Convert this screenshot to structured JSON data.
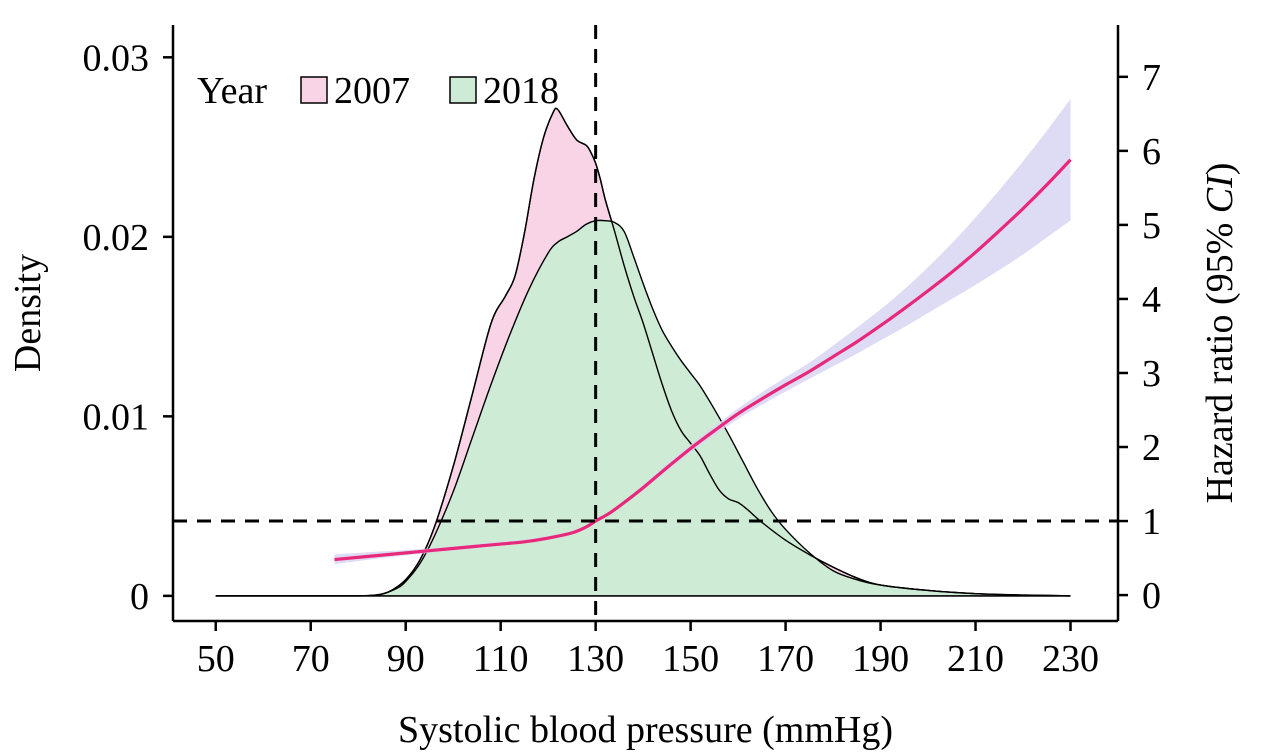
{
  "chart_data": {
    "type": "area",
    "xlabel": "Systolic blood pressure (mmHg)",
    "ylabel": "Density",
    "y2label_main": "Hazard ratio (95% ",
    "y2label_italic": "CI",
    "y2label_end": ")",
    "xlim": [
      41,
      240
    ],
    "ylim": [
      -0.0014,
      0.0318
    ],
    "y2lim": [
      -0.35,
      7.7
    ],
    "x_ticks": [
      50,
      70,
      90,
      110,
      130,
      150,
      170,
      190,
      210,
      230
    ],
    "y_ticks": [
      {
        "value": 0,
        "label": "0"
      },
      {
        "value": 0.01,
        "label": "0.01"
      },
      {
        "value": 0.02,
        "label": "0.02"
      },
      {
        "value": 0.03,
        "label": "0.03"
      }
    ],
    "y2_ticks": [
      0,
      1,
      2,
      3,
      4,
      5,
      6,
      7
    ],
    "legend": {
      "title": "Year",
      "position": "top-left"
    },
    "reference_lines": {
      "x": 130,
      "y2": 1
    },
    "colors": {
      "fill_2007": "#f9d3e6",
      "fill_2018": "#cdebd5",
      "hr_line": "#e8287a",
      "ci_band": "#d8d6f2"
    },
    "series": [
      {
        "name": "2007",
        "type": "density",
        "x": [
          50,
          60,
          70,
          75,
          80,
          83,
          85,
          87,
          90,
          93,
          96,
          100,
          104,
          108,
          111,
          113,
          115,
          117,
          119,
          121,
          122,
          124,
          126,
          128,
          129,
          130,
          131,
          132,
          134,
          136,
          138,
          140,
          142,
          144,
          146,
          148,
          150,
          152,
          154,
          156,
          158,
          160,
          162,
          165,
          170,
          175,
          180,
          185,
          190,
          200,
          210,
          220,
          230
        ],
        "values": [
          0,
          0,
          0,
          0,
          0,
          3e-05,
          0.0001,
          0.0003,
          0.0009,
          0.002,
          0.0038,
          0.0072,
          0.0112,
          0.0152,
          0.0167,
          0.0178,
          0.0202,
          0.0232,
          0.0255,
          0.0269,
          0.0271,
          0.0262,
          0.0254,
          0.0251,
          0.0247,
          0.0241,
          0.0232,
          0.0221,
          0.0203,
          0.0184,
          0.0167,
          0.0152,
          0.0135,
          0.0118,
          0.0103,
          0.0092,
          0.0085,
          0.0078,
          0.0068,
          0.0059,
          0.0054,
          0.0052,
          0.0048,
          0.0041,
          0.0031,
          0.0023,
          0.0016,
          0.001,
          0.0006,
          0.0003,
          0.00012,
          4e-05,
          0
        ]
      },
      {
        "name": "2018",
        "type": "density",
        "x": [
          50,
          60,
          70,
          75,
          80,
          83,
          85,
          88,
          90,
          93,
          96,
          100,
          104,
          108,
          112,
          116,
          120,
          122,
          124,
          126,
          128,
          130,
          132,
          134,
          136,
          138,
          140,
          142,
          144,
          146,
          148,
          150,
          152,
          155,
          158,
          161,
          164,
          167,
          170,
          175,
          180,
          185,
          190,
          200,
          210,
          220,
          230
        ],
        "values": [
          0,
          0,
          0,
          0,
          0,
          3e-05,
          0.0001,
          0.0004,
          0.0008,
          0.0018,
          0.0033,
          0.0058,
          0.0088,
          0.0118,
          0.0146,
          0.0171,
          0.0191,
          0.0197,
          0.02,
          0.0203,
          0.0207,
          0.0209,
          0.0209,
          0.0208,
          0.0203,
          0.0189,
          0.0174,
          0.016,
          0.0148,
          0.0139,
          0.0131,
          0.0124,
          0.0117,
          0.0104,
          0.009,
          0.0075,
          0.006,
          0.0047,
          0.0037,
          0.0024,
          0.0014,
          0.0009,
          0.0006,
          0.0003,
          0.00012,
          5e-05,
          0
        ]
      },
      {
        "name": "Hazard ratio",
        "type": "line",
        "axis": "right",
        "x": [
          75,
          85,
          95,
          105,
          115,
          120,
          125,
          128,
          130,
          133,
          136,
          140,
          145,
          150,
          155,
          160,
          165,
          170,
          175,
          180,
          185,
          190,
          195,
          200,
          205,
          210,
          215,
          220,
          225,
          230
        ],
        "values": [
          0.48,
          0.54,
          0.6,
          0.66,
          0.72,
          0.77,
          0.84,
          0.92,
          1.0,
          1.11,
          1.25,
          1.45,
          1.72,
          1.98,
          2.22,
          2.45,
          2.65,
          2.84,
          3.02,
          3.22,
          3.42,
          3.64,
          3.87,
          4.11,
          4.36,
          4.63,
          4.92,
          5.22,
          5.54,
          5.88
        ],
        "ci_lower": [
          0.42,
          0.5,
          0.57,
          0.63,
          0.7,
          0.75,
          0.82,
          0.91,
          1.0,
          1.1,
          1.23,
          1.42,
          1.68,
          1.93,
          2.16,
          2.38,
          2.57,
          2.75,
          2.92,
          3.09,
          3.26,
          3.44,
          3.62,
          3.81,
          4.0,
          4.19,
          4.39,
          4.6,
          4.83,
          5.06
        ],
        "ci_upper": [
          0.55,
          0.59,
          0.63,
          0.69,
          0.75,
          0.8,
          0.86,
          0.94,
          1.0,
          1.12,
          1.27,
          1.49,
          1.77,
          2.03,
          2.28,
          2.52,
          2.74,
          2.94,
          3.14,
          3.37,
          3.61,
          3.86,
          4.13,
          4.43,
          4.75,
          5.1,
          5.47,
          5.86,
          6.27,
          6.7
        ]
      }
    ]
  }
}
